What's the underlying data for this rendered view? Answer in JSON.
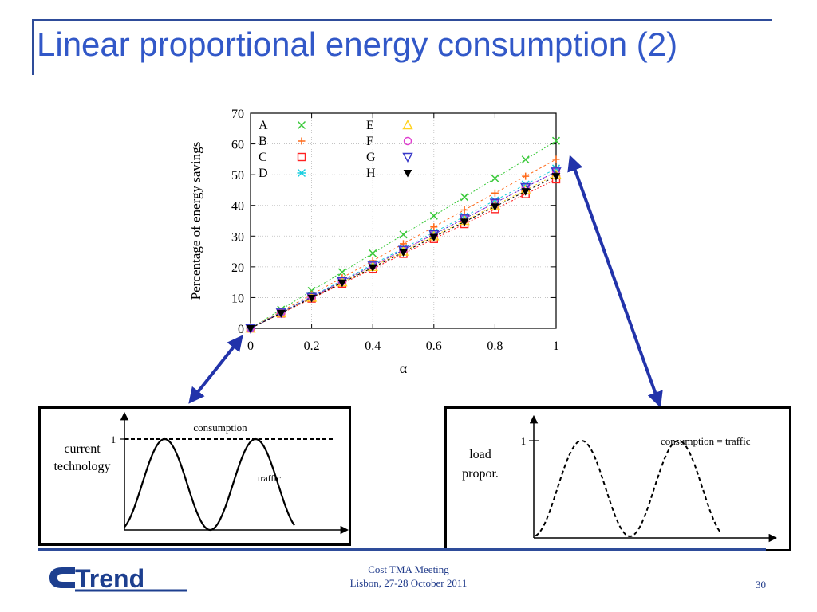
{
  "slide": {
    "title": "Linear proportional energy consumption (2)",
    "footer_line1": "Cost TMA Meeting",
    "footer_line2": "Lisbon, 27-28 October 2011",
    "page_number": "30",
    "logo_text": "Trend"
  },
  "chart_data": {
    "type": "line",
    "title": "",
    "xlabel": "α",
    "ylabel": "Percentage of energy savings",
    "xlim": [
      0,
      1
    ],
    "ylim": [
      0,
      70
    ],
    "xticks": [
      0,
      0.2,
      0.4,
      0.6,
      0.8,
      1
    ],
    "xtick_labels": [
      "0",
      "0.2",
      "0.4",
      "0.6",
      "0.8",
      "1"
    ],
    "yticks": [
      0,
      10,
      20,
      30,
      40,
      50,
      60,
      70
    ],
    "ytick_labels": [
      "0",
      "10",
      "20",
      "30",
      "40",
      "50",
      "60",
      "70"
    ],
    "grid": true,
    "legend_position": "top-left",
    "x": [
      0,
      0.1,
      0.2,
      0.3,
      0.4,
      0.5,
      0.6,
      0.7,
      0.8,
      0.9,
      1
    ],
    "series": [
      {
        "name": "A",
        "marker": "x",
        "color": "#3ac93a",
        "values": [
          0,
          6.1,
          12.2,
          18.3,
          24.4,
          30.5,
          36.6,
          42.7,
          48.8,
          54.9,
          61
        ]
      },
      {
        "name": "B",
        "marker": "plus",
        "color": "#ff6a1a",
        "values": [
          0,
          5.5,
          11,
          16.5,
          22,
          27.5,
          33,
          38.5,
          44,
          49.5,
          55
        ]
      },
      {
        "name": "C",
        "marker": "square",
        "color": "#ff2222",
        "values": [
          0,
          4.85,
          9.7,
          14.55,
          19.4,
          24.25,
          29.1,
          33.95,
          38.8,
          43.65,
          48.5
        ]
      },
      {
        "name": "D",
        "marker": "star",
        "color": "#19cfe0",
        "values": [
          0,
          5.2,
          10.4,
          15.6,
          20.8,
          26,
          31.2,
          36.4,
          41.6,
          46.8,
          52
        ]
      },
      {
        "name": "E",
        "marker": "triangle-up",
        "color": "#ffd21f",
        "values": [
          0,
          5,
          10,
          15,
          20,
          25,
          30,
          35,
          40,
          45,
          50
        ]
      },
      {
        "name": "F",
        "marker": "circle",
        "color": "#e03ccf",
        "values": [
          0,
          5.1,
          10.2,
          15.3,
          20.4,
          25.5,
          30.6,
          35.7,
          40.8,
          45.9,
          51
        ]
      },
      {
        "name": "G",
        "marker": "triangle-down",
        "color": "#3838c8",
        "values": [
          0,
          5.1,
          10.2,
          15.3,
          20.4,
          25.5,
          30.6,
          35.7,
          40.8,
          45.9,
          51
        ]
      },
      {
        "name": "H",
        "marker": "triangle-down-filled",
        "color": "#000000",
        "values": [
          0,
          4.95,
          9.9,
          14.85,
          19.8,
          24.75,
          29.7,
          34.65,
          39.6,
          44.55,
          49.5
        ]
      }
    ],
    "arrow_color": "#2233aa"
  },
  "diagrams": {
    "left": {
      "label_line1": "current",
      "label_line2": "technology",
      "tick_label": "1",
      "consumption_label": "consumption",
      "traffic_label": "traffic"
    },
    "right": {
      "label_line1": "load",
      "label_line2": "propor.",
      "tick_label": "1",
      "consumption_label": "consumption = traffic"
    }
  }
}
